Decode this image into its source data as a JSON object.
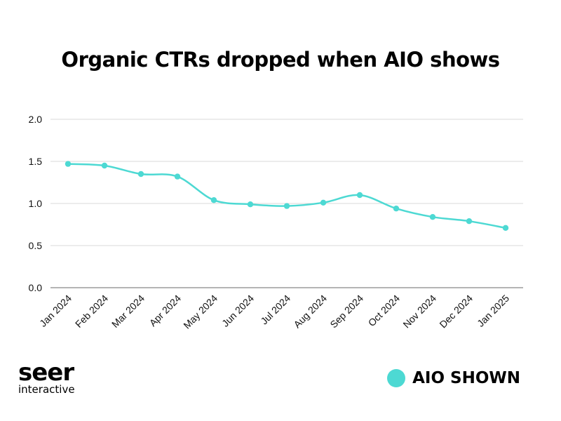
{
  "chart_data": {
    "type": "line",
    "title": "Organic CTRs dropped when AIO shows",
    "categories": [
      "Jan 2024",
      "Feb 2024",
      "Mar 2024",
      "Apr 2024",
      "May 2024",
      "Jun 2024",
      "Jul 2024",
      "Aug 2024",
      "Sep 2024",
      "Oct 2024",
      "Nov 2024",
      "Dec 2024",
      "Jan 2025"
    ],
    "series": [
      {
        "name": "AIO SHOWN",
        "color": "#4dd9d3",
        "values": [
          1.47,
          1.45,
          1.35,
          1.32,
          1.04,
          0.99,
          0.97,
          1.01,
          1.1,
          0.94,
          0.84,
          0.79,
          0.71
        ]
      }
    ],
    "ylim": [
      0,
      2.0
    ],
    "yticks": [
      "0.0",
      "0.5",
      "1.0",
      "1.5",
      "2.0"
    ],
    "xlabel": "",
    "ylabel": "",
    "grid": true,
    "legend_position": "bottom-right"
  },
  "branding": {
    "logo_main": "seer",
    "logo_sub": "interactive"
  },
  "colors": {
    "line": "#4dd9d3",
    "grid": "#d9d9d9",
    "axis": "#888888"
  }
}
